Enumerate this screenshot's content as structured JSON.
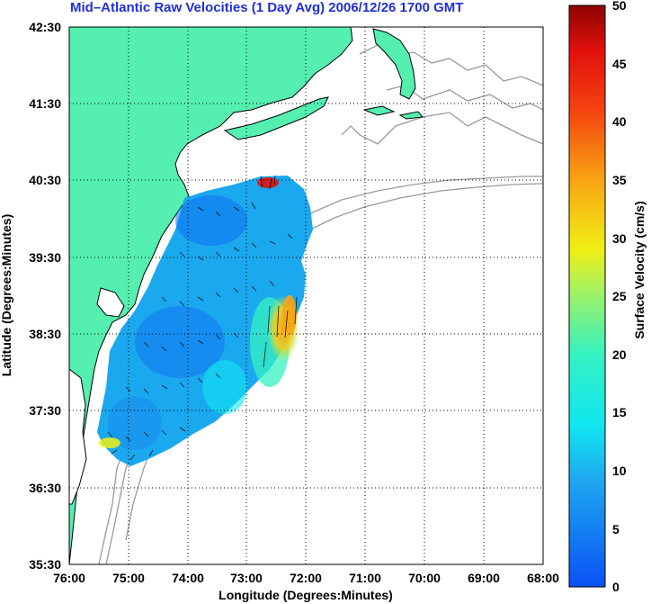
{
  "title": "Mid–Atlantic Raw Velocities (1 Day Avg) 2006/12/26 1700 GMT",
  "x_axis": {
    "label": "Longitude (Degrees:Minutes)",
    "ticks": [
      "76:00",
      "75:00",
      "74:00",
      "73:00",
      "72:00",
      "71:00",
      "70:00",
      "69:00",
      "68:00"
    ]
  },
  "y_axis": {
    "label": "Latitude (Degrees:Minutes)",
    "ticks": [
      "42:30",
      "41:30",
      "40:30",
      "39:30",
      "38:30",
      "37:30",
      "36:30",
      "35:30"
    ]
  },
  "colorbar": {
    "label": "Surface Velocity (cm/s)",
    "ticks": [
      "50",
      "45",
      "40",
      "35",
      "30",
      "25",
      "20",
      "15",
      "10",
      "5",
      "0"
    ],
    "min": 0,
    "max": 50
  },
  "colors": {
    "land": "#55efb0",
    "coastline": "#000000",
    "bathymetry": "#9a9a9a",
    "grid": "#000000",
    "title": "#1f2fd8",
    "vectors": "#000000"
  }
}
